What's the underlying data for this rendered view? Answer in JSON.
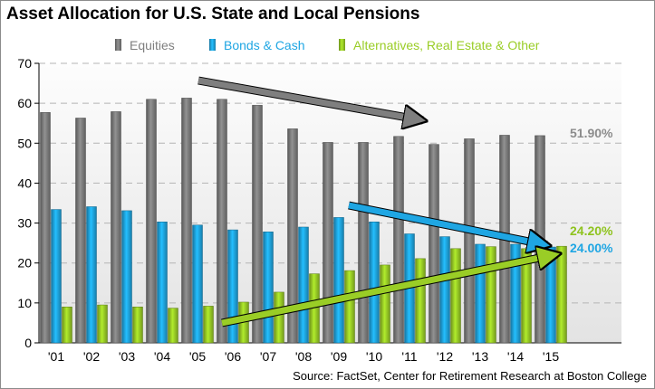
{
  "chart_data": {
    "type": "bar",
    "title": "Asset Allocation for U.S. State and Local Pensions",
    "source": "Source: FactSet, Center for Retirement Research at Boston College",
    "categories": [
      "'01",
      "'02",
      "'03",
      "'04",
      "'05",
      "'06",
      "'07",
      "'08",
      "'09",
      "'10",
      "'11",
      "'12",
      "'13",
      "'14",
      "'15"
    ],
    "series": [
      {
        "name": "Equities",
        "color": "#7f7f7f",
        "values": [
          57.7,
          56.3,
          57.9,
          61.0,
          61.3,
          61.0,
          59.5,
          53.6,
          50.2,
          50.2,
          51.7,
          49.7,
          51.1,
          52.0,
          51.9
        ]
      },
      {
        "name": "Bonds & Cash",
        "color": "#1fa6e3",
        "values": [
          33.4,
          34.1,
          33.1,
          30.3,
          29.5,
          28.3,
          27.8,
          29.0,
          31.4,
          30.3,
          27.3,
          26.6,
          24.7,
          24.7,
          24.0
        ]
      },
      {
        "name": "Alternatives, Real Estate & Other",
        "color": "#9acd26",
        "values": [
          9.0,
          9.5,
          9.0,
          8.7,
          9.2,
          10.2,
          12.7,
          17.3,
          18.1,
          19.5,
          21.1,
          23.6,
          24.1,
          23.6,
          24.2
        ]
      }
    ],
    "ylim": [
      0,
      70
    ],
    "yticks": [
      0,
      10,
      20,
      30,
      40,
      50,
      60,
      70
    ],
    "xlabel": "",
    "ylabel": "",
    "grid": true,
    "legend": "top",
    "annotations": [
      {
        "text": "51.90%",
        "series": 0,
        "color": "#8c8c8c"
      },
      {
        "text": "24.20%",
        "series": 2,
        "color": "#8fc31f"
      },
      {
        "text": "24.00%",
        "series": 1,
        "color": "#1fa6e3"
      }
    ]
  }
}
